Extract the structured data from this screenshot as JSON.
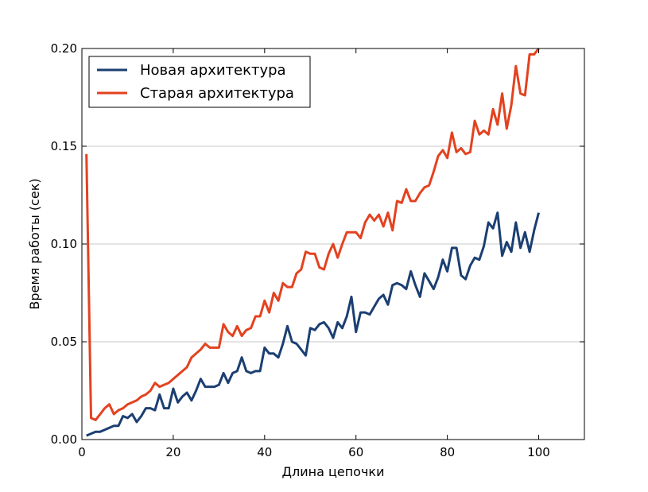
{
  "chart_data": {
    "type": "line",
    "xlabel": "Длина цепочки",
    "ylabel": "Время работы (сек)",
    "xlim": [
      0,
      110
    ],
    "ylim": [
      0,
      0.2
    ],
    "xticks": [
      0,
      20,
      40,
      60,
      80,
      100
    ],
    "xtick_labels": [
      "0",
      "20",
      "40",
      "60",
      "80",
      "100"
    ],
    "yticks": [
      0,
      0.05,
      0.1,
      0.15,
      0.2
    ],
    "ytick_labels": [
      "0.00",
      "0.05",
      "0.10",
      "0.15",
      "0.20"
    ],
    "grid": "horizontal",
    "legend_position": "top-left",
    "series": [
      {
        "name": "Новая архитектура",
        "color": "#1b3f72",
        "x": [
          1,
          2,
          3,
          4,
          5,
          6,
          7,
          8,
          9,
          10,
          11,
          12,
          13,
          14,
          15,
          16,
          17,
          18,
          19,
          20,
          21,
          22,
          23,
          24,
          25,
          26,
          27,
          28,
          29,
          30,
          31,
          32,
          33,
          34,
          35,
          36,
          37,
          38,
          39,
          40,
          41,
          42,
          43,
          44,
          45,
          46,
          47,
          48,
          49,
          50,
          51,
          52,
          53,
          54,
          55,
          56,
          57,
          58,
          59,
          60,
          61,
          62,
          63,
          64,
          65,
          66,
          67,
          68,
          69,
          70,
          71,
          72,
          73,
          74,
          75,
          76,
          77,
          78,
          79,
          80,
          81,
          82,
          83,
          84,
          85,
          86,
          87,
          88,
          89,
          90,
          91,
          92,
          93,
          94,
          95,
          96,
          97,
          98,
          99,
          100
        ],
        "y": [
          0.002,
          0.003,
          0.004,
          0.004,
          0.005,
          0.006,
          0.007,
          0.007,
          0.012,
          0.011,
          0.013,
          0.009,
          0.012,
          0.016,
          0.016,
          0.015,
          0.023,
          0.016,
          0.016,
          0.026,
          0.019,
          0.022,
          0.024,
          0.02,
          0.025,
          0.031,
          0.027,
          0.027,
          0.027,
          0.028,
          0.034,
          0.029,
          0.034,
          0.035,
          0.042,
          0.035,
          0.034,
          0.035,
          0.035,
          0.047,
          0.044,
          0.044,
          0.042,
          0.049,
          0.058,
          0.05,
          0.049,
          0.046,
          0.043,
          0.057,
          0.056,
          0.059,
          0.06,
          0.057,
          0.052,
          0.06,
          0.057,
          0.063,
          0.073,
          0.055,
          0.065,
          0.065,
          0.064,
          0.068,
          0.072,
          0.074,
          0.069,
          0.079,
          0.08,
          0.079,
          0.077,
          0.086,
          0.079,
          0.073,
          0.085,
          0.081,
          0.077,
          0.083,
          0.092,
          0.086,
          0.098,
          0.098,
          0.084,
          0.082,
          0.089,
          0.093,
          0.092,
          0.099,
          0.111,
          0.108,
          0.116,
          0.094,
          0.101,
          0.096,
          0.111,
          0.098,
          0.106,
          0.096,
          0.107,
          0.116
        ]
      },
      {
        "name": "Старая архитектура",
        "color": "#e3421f",
        "x": [
          1,
          2,
          3,
          4,
          5,
          6,
          7,
          8,
          9,
          10,
          11,
          12,
          13,
          14,
          15,
          16,
          17,
          18,
          19,
          20,
          21,
          22,
          23,
          24,
          25,
          26,
          27,
          28,
          29,
          30,
          31,
          32,
          33,
          34,
          35,
          36,
          37,
          38,
          39,
          40,
          41,
          42,
          43,
          44,
          45,
          46,
          47,
          48,
          49,
          50,
          51,
          52,
          53,
          54,
          55,
          56,
          57,
          58,
          59,
          60,
          61,
          62,
          63,
          64,
          65,
          66,
          67,
          68,
          69,
          70,
          71,
          72,
          73,
          74,
          75,
          76,
          77,
          78,
          79,
          80,
          81,
          82,
          83,
          84,
          85,
          86,
          87,
          88,
          89,
          90,
          91,
          92,
          93,
          94,
          95,
          96,
          97,
          98,
          99,
          100
        ],
        "y": [
          0.146,
          0.011,
          0.01,
          0.013,
          0.016,
          0.018,
          0.013,
          0.015,
          0.016,
          0.018,
          0.019,
          0.02,
          0.022,
          0.023,
          0.025,
          0.029,
          0.027,
          0.028,
          0.029,
          0.031,
          0.033,
          0.035,
          0.037,
          0.042,
          0.044,
          0.046,
          0.049,
          0.047,
          0.047,
          0.047,
          0.059,
          0.055,
          0.053,
          0.058,
          0.053,
          0.056,
          0.057,
          0.063,
          0.063,
          0.071,
          0.065,
          0.075,
          0.071,
          0.08,
          0.078,
          0.078,
          0.085,
          0.087,
          0.096,
          0.095,
          0.095,
          0.088,
          0.087,
          0.095,
          0.1,
          0.093,
          0.1,
          0.106,
          0.106,
          0.106,
          0.103,
          0.111,
          0.115,
          0.112,
          0.115,
          0.109,
          0.116,
          0.107,
          0.122,
          0.121,
          0.128,
          0.122,
          0.122,
          0.126,
          0.129,
          0.13,
          0.137,
          0.145,
          0.148,
          0.144,
          0.157,
          0.147,
          0.149,
          0.146,
          0.147,
          0.163,
          0.156,
          0.158,
          0.156,
          0.169,
          0.161,
          0.177,
          0.159,
          0.171,
          0.191,
          0.177,
          0.176,
          0.197,
          0.197,
          0.2
        ]
      }
    ]
  }
}
